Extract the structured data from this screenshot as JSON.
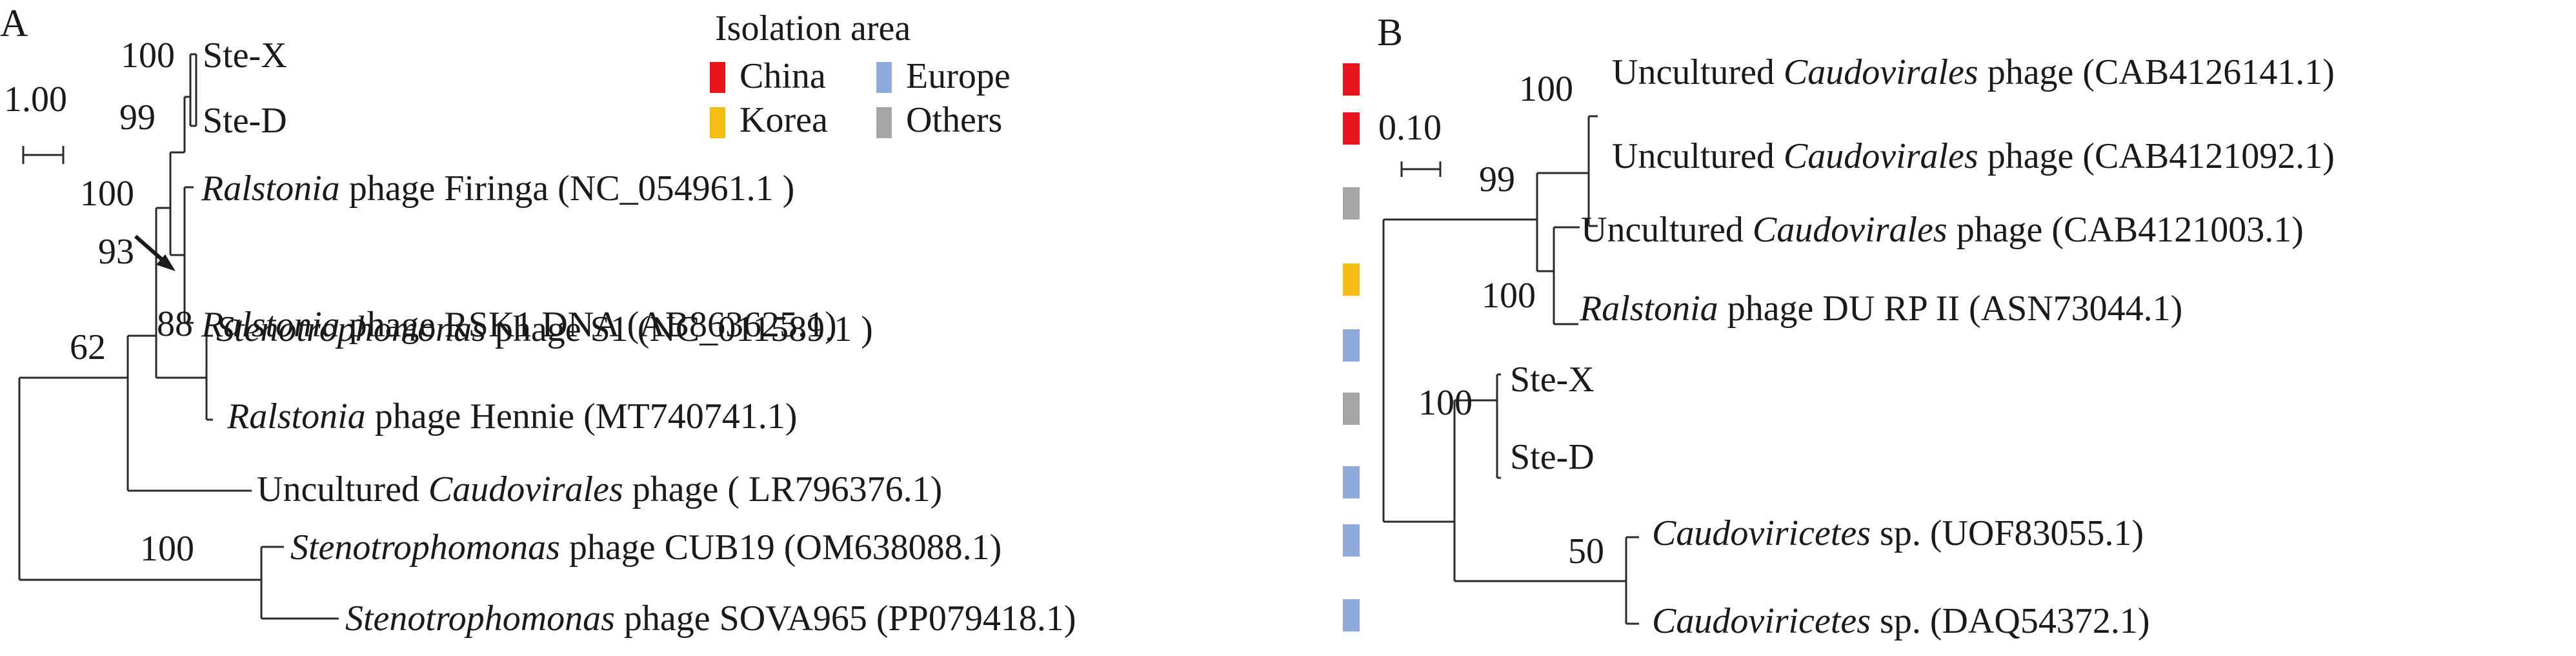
{
  "panel_a": {
    "letter": "A",
    "scale_value": "1.00",
    "legend": {
      "title": "Isolation area",
      "items": [
        {
          "label": "China",
          "color": "#e8141b"
        },
        {
          "label": "Europe",
          "color": "#8faadc"
        },
        {
          "label": "Korea",
          "color": "#f5bc16"
        },
        {
          "label": "Others",
          "color": "#a6a6a6"
        }
      ]
    },
    "bootstrap": {
      "steX_steD": "100",
      "steD_group": "99",
      "ralstonia_pair": "100",
      "node_93": "93",
      "node_88": "88",
      "node_62": "62",
      "steno_pair": "100"
    },
    "leaves": [
      {
        "key": "ste_x",
        "italic": "",
        "rest": "Ste-X",
        "area": "China"
      },
      {
        "key": "ste_d",
        "italic": "",
        "rest": "Ste-D",
        "area": "China"
      },
      {
        "key": "firinga",
        "italic": "Ralstonia",
        "rest": " phage Firinga (NC_054961.1 )",
        "area": "Others"
      },
      {
        "key": "rsk1",
        "italic": "Ralstonia",
        "rest": " phage RSK1 DNA (AB863625.1)",
        "area": "Korea"
      },
      {
        "key": "s1",
        "italic": "Stenotrophomonas",
        "rest": " phage S1 (NC_011589.1 )",
        "area": "Europe"
      },
      {
        "key": "hennie",
        "italic": "Ralstonia",
        "rest": " phage Hennie (MT740741.1)",
        "area": "Others"
      },
      {
        "key": "uncult",
        "pre": "Uncultured ",
        "italic": "Caudovirales",
        "rest": " phage ( LR796376.1)",
        "area": "Europe"
      },
      {
        "key": "cub19",
        "italic": "Stenotrophomonas",
        "rest": " phage CUB19 (OM638088.1)",
        "area": "Europe"
      },
      {
        "key": "sova",
        "italic": "Stenotrophomonas",
        "rest": " phage SOVA965 (PP079418.1)",
        "area": "Europe"
      }
    ]
  },
  "panel_b": {
    "letter": "B",
    "scale_value": "0.10",
    "bootstrap": {
      "cab_pair": "100",
      "node_99": "99",
      "du_pair": "100",
      "ste_pair": "100",
      "caudoviricetes_pair": "50"
    },
    "leaves": [
      {
        "key": "cab4126141",
        "pre": "Uncultured ",
        "italic": "Caudovirales",
        "rest": " phage (CAB4126141.1)"
      },
      {
        "key": "cab4121092",
        "pre": "Uncultured ",
        "italic": "Caudovirales",
        "rest": " phage (CAB4121092.1)"
      },
      {
        "key": "cab4121003",
        "pre": "Uncultured ",
        "italic": "Caudovirales",
        "rest": " phage (CAB4121003.1)"
      },
      {
        "key": "du_rp",
        "italic": "Ralstonia",
        "rest": " phage DU RP II (ASN73044.1)"
      },
      {
        "key": "ste_x",
        "italic": "",
        "rest": "Ste-X"
      },
      {
        "key": "ste_d",
        "italic": "",
        "rest": "Ste-D"
      },
      {
        "key": "uof",
        "italic": "Caudoviricetes",
        "rest": " sp. (UOF83055.1)"
      },
      {
        "key": "daq",
        "italic": "Caudoviricetes",
        "rest": " sp. (DAQ54372.1)"
      }
    ]
  }
}
